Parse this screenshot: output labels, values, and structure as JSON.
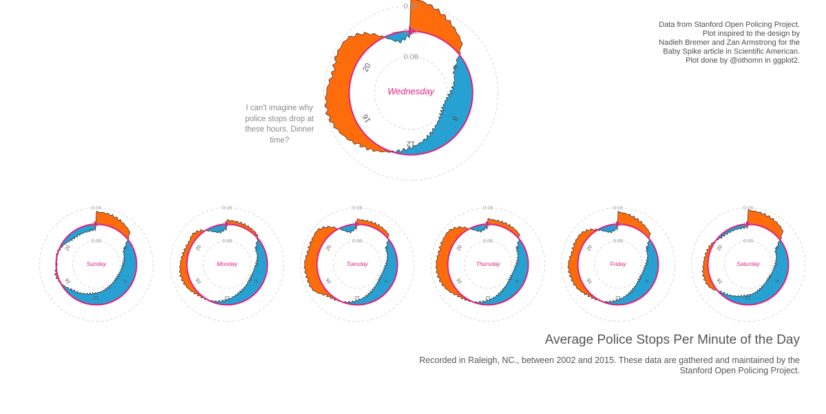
{
  "credits": [
    "Data from Stanford Open Policing Project.",
    "Plot inspired to the design by",
    "Nadieh Bremer and Zan Armstrong for the",
    "Baby Spike article in Scientific American.",
    "Plot done by @othomn in ggplot2."
  ],
  "annotation": "I can't imagine why police stops drop at these hours. Dinner time?",
  "footer": {
    "title": "Average Police Stops Per Minute of the Day",
    "subtitle": "Recorded in Raleigh, NC., between 2002 and 2015. These data are gathered and maintained by the Stanford Open Policing Project."
  },
  "colors": {
    "above_average": "#ff6c0c",
    "below_average": "#27a1d2",
    "average_ring": "#e0207f",
    "outline": "#222222",
    "grid": "#d6d6d6",
    "label": "#999999"
  },
  "chart_data": {
    "type": "radial area",
    "baseline_value": 0.12,
    "r_ticks": [
      0.08,
      0.12,
      0.16
    ],
    "r_tick_labels": [
      "0.08",
      "0.12",
      "0.16"
    ],
    "hour_ticks": [
      4,
      8,
      12,
      16,
      20
    ],
    "hour_labels": [
      "4",
      "8",
      "12",
      "16",
      "20"
    ],
    "key_hours": [
      0,
      3,
      4,
      5,
      7,
      9,
      11,
      13,
      15,
      16,
      17,
      18,
      19,
      20,
      21,
      23,
      24
    ],
    "panels": [
      {
        "day": "Wednesday",
        "featured": true,
        "values": [
          0.172,
          0.136,
          0.102,
          0.093,
          0.078,
          0.084,
          0.1,
          0.118,
          0.138,
          0.15,
          0.158,
          0.156,
          0.15,
          0.155,
          0.15,
          0.107,
          0.112,
          0.098,
          0.126,
          0.16,
          0.167,
          0.172,
          0.178
        ]
      },
      {
        "day": "Sunday",
        "values": [
          0.15,
          0.136,
          0.1,
          0.092,
          0.083,
          0.082,
          0.088,
          0.096,
          0.108,
          0.118,
          0.124,
          0.118,
          0.121,
          0.115,
          0.107,
          0.105,
          0.108,
          0.11,
          0.12,
          0.132,
          0.136,
          0.142,
          0.145
        ]
      },
      {
        "day": "Monday",
        "values": [
          0.13,
          0.125,
          0.103,
          0.098,
          0.088,
          0.09,
          0.1,
          0.115,
          0.125,
          0.134,
          0.138,
          0.136,
          0.132,
          0.13,
          0.132,
          0.103,
          0.108,
          0.095,
          0.122,
          0.136,
          0.14,
          0.142,
          0.144
        ]
      },
      {
        "day": "Tuesday",
        "values": [
          0.132,
          0.128,
          0.104,
          0.098,
          0.087,
          0.089,
          0.102,
          0.117,
          0.128,
          0.146,
          0.148,
          0.15,
          0.146,
          0.148,
          0.146,
          0.104,
          0.11,
          0.096,
          0.124,
          0.14,
          0.145,
          0.147,
          0.148
        ]
      },
      {
        "day": "Thursday",
        "values": [
          0.133,
          0.128,
          0.104,
          0.097,
          0.086,
          0.088,
          0.101,
          0.117,
          0.128,
          0.14,
          0.146,
          0.148,
          0.145,
          0.147,
          0.144,
          0.106,
          0.111,
          0.096,
          0.13,
          0.148,
          0.152,
          0.155,
          0.156
        ]
      },
      {
        "day": "Friday",
        "values": [
          0.15,
          0.131,
          0.103,
          0.096,
          0.085,
          0.087,
          0.1,
          0.116,
          0.127,
          0.137,
          0.141,
          0.143,
          0.138,
          0.14,
          0.136,
          0.104,
          0.109,
          0.097,
          0.134,
          0.152,
          0.157,
          0.16,
          0.162
        ]
      },
      {
        "day": "Saturday",
        "values": [
          0.154,
          0.14,
          0.1,
          0.093,
          0.084,
          0.083,
          0.092,
          0.102,
          0.116,
          0.131,
          0.134,
          0.131,
          0.128,
          0.124,
          0.115,
          0.112,
          0.113,
          0.114,
          0.134,
          0.15,
          0.155,
          0.16,
          0.162
        ]
      }
    ]
  }
}
